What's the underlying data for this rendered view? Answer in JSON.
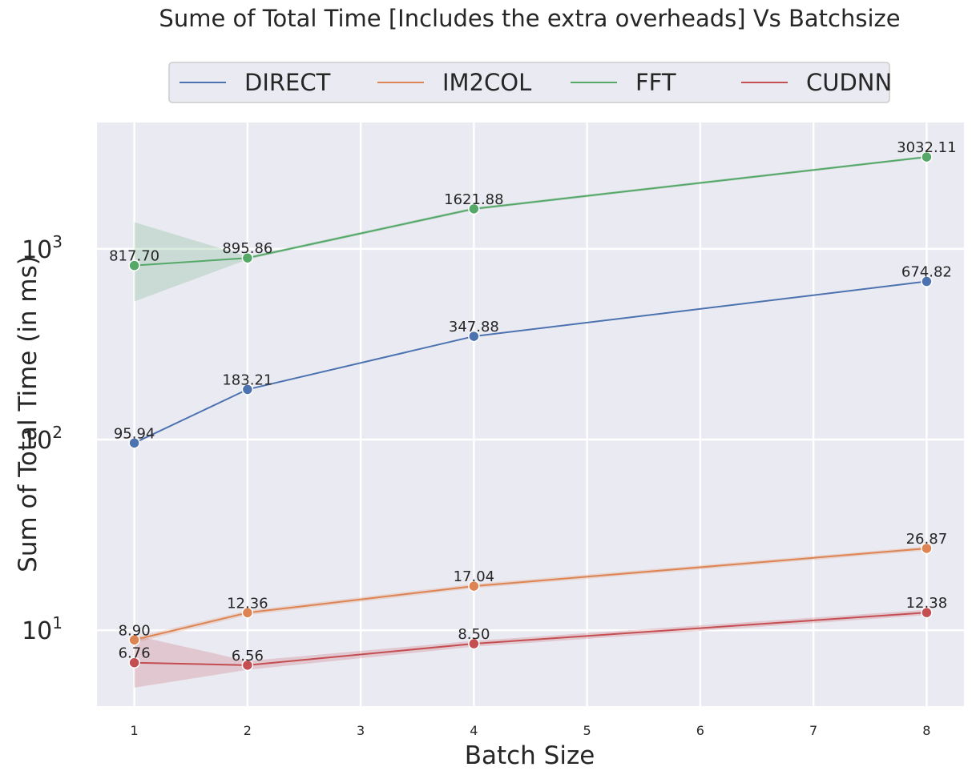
{
  "chart_data": {
    "type": "line",
    "title": "Sume of Total Time [Includes the extra overheads] Vs Batchsize",
    "xlabel": "Batch Size",
    "ylabel": "Sum of Total Time (in ms)",
    "x": [
      1,
      2,
      4,
      8
    ],
    "xticks": [
      1,
      2,
      3,
      4,
      5,
      6,
      7,
      8
    ],
    "xlim": [
      0.67,
      8.33
    ],
    "yscale": "log",
    "ylim": [
      4,
      4600
    ],
    "yticks": [
      {
        "base": "10",
        "exp": "1",
        "value": 10
      },
      {
        "base": "10",
        "exp": "2",
        "value": 100
      },
      {
        "base": "10",
        "exp": "3",
        "value": 1000
      }
    ],
    "grid": true,
    "legend_position": "top-center",
    "series": [
      {
        "name": "DIRECT",
        "color": "#4c72b0",
        "values": [
          95.94,
          183.21,
          347.88,
          674.82
        ],
        "labels": [
          "95.94",
          "183.21",
          "347.88",
          "674.82"
        ]
      },
      {
        "name": "IM2COL",
        "color": "#dd8452",
        "values": [
          8.9,
          12.36,
          17.04,
          26.87
        ],
        "labels": [
          "8.90",
          "12.36",
          "17.04",
          "26.87"
        ],
        "band_low": [
          8.6,
          12.0,
          16.6,
          26.2
        ],
        "band_high": [
          9.2,
          12.7,
          17.5,
          27.5
        ]
      },
      {
        "name": "FFT",
        "color": "#55a868",
        "values": [
          817.7,
          895.86,
          1621.88,
          3032.11
        ],
        "labels": [
          "817.70",
          "895.86",
          "1621.88",
          "3032.11"
        ],
        "band_low": [
          530,
          880,
          1595,
          2990
        ],
        "band_high": [
          1380,
          912,
          1650,
          3075
        ]
      },
      {
        "name": "CUDNN",
        "color": "#c44e52",
        "values": [
          6.76,
          6.56,
          8.5,
          12.38
        ],
        "labels": [
          "6.76",
          "6.56",
          "8.50",
          "12.38"
        ],
        "band_low": [
          5.0,
          6.2,
          8.2,
          12.0
        ],
        "band_high": [
          9.4,
          6.9,
          8.8,
          12.8
        ]
      }
    ]
  }
}
